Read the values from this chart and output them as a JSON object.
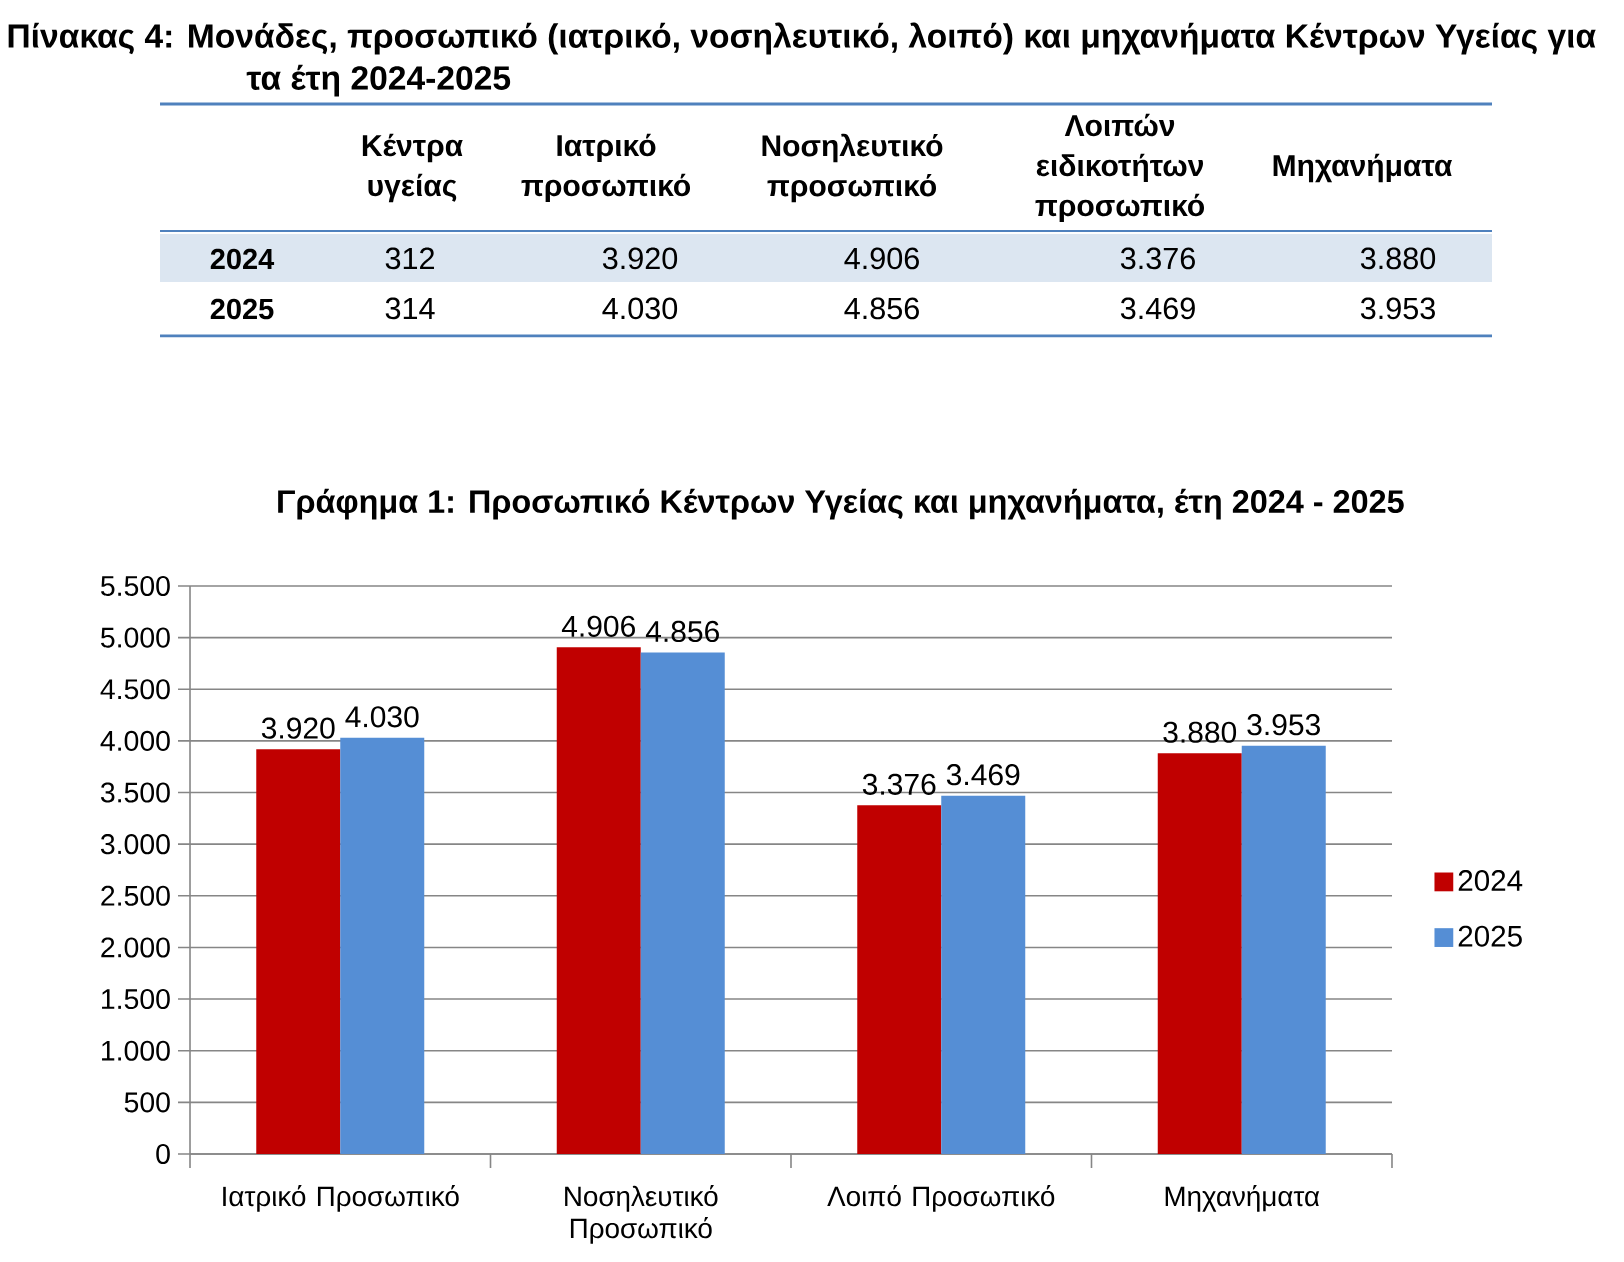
{
  "chart_data": [
    {
      "type": "other",
      "title": "Πίνακας 4: Μονάδες, προσωπικό (ιατρικό, νοσηλευτικό, λοιπό) και μηχανήματα Κέντρων Υγείας για τα έτη 2024-2025",
      "categories": [
        "Κέντρα υγείας",
        "Ιατρικό προσωπικό",
        "Νοσηλευτικό προσωπικό",
        "Λοιπών ειδικοτήτων προσωπικό",
        "Μηχανήματα"
      ],
      "y_categories": [
        "2024",
        "2025"
      ],
      "cells": [
        [
          "312",
          "3.920",
          "4.906",
          "3.376",
          "3.880"
        ],
        [
          "314",
          "4.030",
          "4.856",
          "3.469",
          "3.953"
        ]
      ]
    },
    {
      "type": "bar",
      "title": "Γράφημα 1: Προσωπικό Κέντρων Υγείας και μηχανήματα, έτη 2024 - 2025",
      "categories": [
        "Ιατρικό Προσωπικό",
        "Νοσηλευτικό Προσωπικό",
        "Λοιπό Προσωπικό",
        "Μηχανήματα"
      ],
      "series": [
        {
          "name": "2024",
          "color": "#c00000",
          "values": [
            3920,
            4906,
            3376,
            3880
          ],
          "value_labels": [
            "3.920",
            "4.906",
            "3.376",
            "3.880"
          ]
        },
        {
          "name": "2025",
          "color": "#558ed5",
          "values": [
            4030,
            4856,
            3469,
            3953
          ],
          "value_labels": [
            "4.030",
            "4.856",
            "3.469",
            "3.953"
          ]
        }
      ],
      "ylim": [
        0,
        5500
      ],
      "yticks": [
        0,
        500,
        {
          "value": 1000,
          "label": "1.000"
        },
        {
          "value": 1500,
          "label": "1.500"
        },
        {
          "value": 2000,
          "label": "2.000"
        },
        {
          "value": 2500,
          "label": "2.500"
        },
        {
          "value": 3000,
          "label": "3.000"
        },
        {
          "value": 3500,
          "label": "3.500"
        },
        {
          "value": 4000,
          "label": "4.000"
        },
        {
          "value": 4500,
          "label": "4.500"
        },
        {
          "value": 5000,
          "label": "5.000"
        },
        {
          "value": 5500,
          "label": "5.500"
        }
      ],
      "grid": "y",
      "legend": "right"
    }
  ]
}
